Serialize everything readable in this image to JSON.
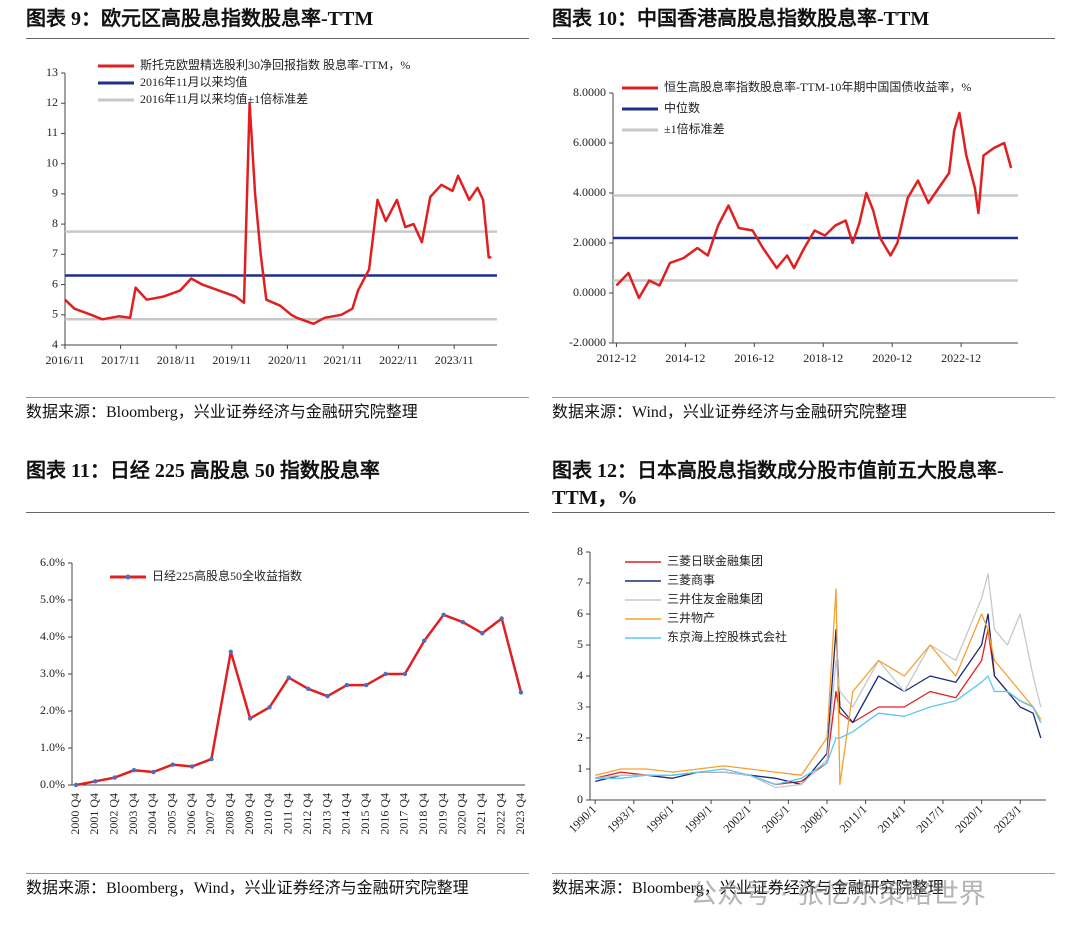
{
  "watermark": "公众号 · 张忆东策略世界",
  "chart_data": [
    {
      "type": "line",
      "title": "图表 9：欧元区高股息指数股息率-TTM",
      "source": "数据来源：Bloomberg，兴业证券经济与金融研究院整理",
      "x": [
        2016.83,
        2017.0,
        2017.3,
        2017.5,
        2017.8,
        2018.0,
        2018.1,
        2018.3,
        2018.6,
        2018.9,
        2019.1,
        2019.3,
        2019.6,
        2019.9,
        2020.05,
        2020.15,
        2020.25,
        2020.35,
        2020.45,
        2020.7,
        2020.9,
        2021.0,
        2021.3,
        2021.5,
        2021.8,
        2022.0,
        2022.1,
        2022.3,
        2022.45,
        2022.6,
        2022.8,
        2022.95,
        2023.1,
        2023.25,
        2023.4,
        2023.6,
        2023.8,
        2023.9,
        2024.1,
        2024.25,
        2024.35,
        2024.45,
        2024.5
      ],
      "series": [
        {
          "name": "斯托克欧盟精选股利30净回报指数 股息率-TTM，%",
          "color": "#e02020",
          "values": [
            5.5,
            5.2,
            5.0,
            4.85,
            4.95,
            4.9,
            5.9,
            5.5,
            5.6,
            5.8,
            6.2,
            6.0,
            5.8,
            5.6,
            5.4,
            12.0,
            9.0,
            7.0,
            5.5,
            5.3,
            5.0,
            4.9,
            4.7,
            4.9,
            5.0,
            5.2,
            5.8,
            6.5,
            8.8,
            8.1,
            8.8,
            7.9,
            8.0,
            7.4,
            8.9,
            9.3,
            9.1,
            9.6,
            8.8,
            9.2,
            8.8,
            6.9,
            6.9
          ]
        }
      ],
      "hlines": [
        {
          "name": "2016年11月以来均值",
          "color": "#1f2f8a",
          "values": [
            6.3
          ]
        },
        {
          "name": "2016年11月以来均值±1倍标准差",
          "color": "#c8c8c8",
          "values": [
            7.75,
            4.85
          ]
        }
      ],
      "xlim": [
        2016.83,
        2024.6
      ],
      "xticks": [
        {
          "value": 2016.83,
          "label": "2016/11"
        },
        {
          "value": 2017.83,
          "label": "2017/11"
        },
        {
          "value": 2018.83,
          "label": "2018/11"
        },
        {
          "value": 2019.83,
          "label": "2019/11"
        },
        {
          "value": 2020.83,
          "label": "2020/11"
        },
        {
          "value": 2021.83,
          "label": "2021/11"
        },
        {
          "value": 2022.83,
          "label": "2022/11"
        },
        {
          "value": 2023.83,
          "label": "2023/11"
        }
      ],
      "ylim": [
        4,
        13
      ],
      "yticks": [
        4,
        5,
        6,
        7,
        8,
        9,
        10,
        11,
        12,
        13
      ]
    },
    {
      "type": "line",
      "title": "图表 10：中国香港高股息指数股息率-TTM",
      "source": "数据来源：Wind，兴业证券经济与金融研究院整理",
      "x": [
        2012.95,
        2013.3,
        2013.6,
        2013.9,
        2014.2,
        2014.5,
        2014.9,
        2015.3,
        2015.6,
        2015.9,
        2016.2,
        2016.5,
        2016.9,
        2017.2,
        2017.6,
        2017.9,
        2018.1,
        2018.4,
        2018.7,
        2019.0,
        2019.3,
        2019.6,
        2019.8,
        2020.0,
        2020.2,
        2020.4,
        2020.6,
        2020.9,
        2021.1,
        2021.4,
        2021.7,
        2022.0,
        2022.3,
        2022.6,
        2022.75,
        2022.9,
        2023.1,
        2023.35,
        2023.45,
        2023.6,
        2023.9,
        2024.2,
        2024.4
      ],
      "series": [
        {
          "name": "恒生高股息率指数股息率-TTM-10年期中国国债收益率，%",
          "color": "#e02020",
          "values": [
            0.3,
            0.8,
            -0.2,
            0.5,
            0.3,
            1.2,
            1.4,
            1.8,
            1.5,
            2.7,
            3.5,
            2.6,
            2.5,
            1.8,
            1.0,
            1.5,
            1.0,
            1.8,
            2.5,
            2.3,
            2.7,
            2.9,
            2.0,
            2.8,
            4.0,
            3.3,
            2.2,
            1.5,
            2.0,
            3.8,
            4.5,
            3.6,
            4.2,
            4.8,
            6.5,
            7.2,
            5.5,
            4.2,
            3.2,
            5.5,
            5.8,
            6.0,
            5.0
          ]
        }
      ],
      "hlines": [
        {
          "name": "中位数",
          "color": "#1f2f8a",
          "values": [
            2.2
          ]
        },
        {
          "name": "±1倍标准差",
          "color": "#c8c8c8",
          "values": [
            3.9,
            0.5
          ]
        }
      ],
      "xlim": [
        2012.85,
        2024.6
      ],
      "xticks": [
        {
          "value": 2012.95,
          "label": "2012-12"
        },
        {
          "value": 2014.95,
          "label": "2014-12"
        },
        {
          "value": 2016.95,
          "label": "2016-12"
        },
        {
          "value": 2018.95,
          "label": "2018-12"
        },
        {
          "value": 2020.95,
          "label": "2020-12"
        },
        {
          "value": 2022.95,
          "label": "2022-12"
        }
      ],
      "ylim": [
        -2,
        8
      ],
      "yticks": [
        {
          "value": -2,
          "label": "-2.0000"
        },
        {
          "value": 0,
          "label": "0.0000"
        },
        {
          "value": 2,
          "label": "2.0000"
        },
        {
          "value": 4,
          "label": "4.0000"
        },
        {
          "value": 6,
          "label": "6.0000"
        },
        {
          "value": 8,
          "label": "8.0000"
        }
      ]
    },
    {
      "type": "line",
      "title": "图表 11：日经 225 高股息 50 指数股息率",
      "source": "数据来源：Bloomberg，Wind，兴业证券经济与金融研究院整理",
      "markers": true,
      "categories": [
        "2000 Q4",
        "2001 Q4",
        "2002 Q4",
        "2003 Q4",
        "2004 Q4",
        "2005 Q4",
        "2006 Q4",
        "2007 Q4",
        "2008 Q4",
        "2009 Q4",
        "2010 Q4",
        "2011 Q4",
        "2012 Q4",
        "2013 Q4",
        "2014 Q4",
        "2015 Q4",
        "2016 Q4",
        "2017 Q4",
        "2018 Q4",
        "2019 Q4",
        "2020 Q4",
        "2021 Q4",
        "2022 Q4",
        "2023 Q4"
      ],
      "series": [
        {
          "name": "日经225高股息50全收益指数",
          "color": "#e02020",
          "marker_color": "#4a6fc0",
          "values": [
            0.0,
            0.1,
            0.2,
            0.4,
            0.35,
            0.55,
            0.5,
            0.7,
            3.6,
            1.8,
            2.1,
            2.9,
            2.6,
            2.4,
            2.7,
            2.7,
            3.0,
            3.0,
            3.9,
            4.6,
            4.4,
            4.1,
            4.5,
            2.5
          ]
        }
      ],
      "ylim": [
        0,
        6
      ],
      "yticks": [
        {
          "value": 0,
          "label": "0.0%"
        },
        {
          "value": 1,
          "label": "1.0%"
        },
        {
          "value": 2,
          "label": "2.0%"
        },
        {
          "value": 3,
          "label": "3.0%"
        },
        {
          "value": 4,
          "label": "4.0%"
        },
        {
          "value": 5,
          "label": "5.0%"
        },
        {
          "value": 6,
          "label": "6.0%"
        }
      ]
    },
    {
      "type": "line",
      "title": "图表 12：日本高股息指数成分股市值前五大股息率-TTM，%",
      "source": "数据来源：Bloomberg，兴业证券经济与金融研究院整理",
      "x": [
        1990,
        1992,
        1994,
        1996,
        1998,
        2000,
        2002,
        2004,
        2006,
        2008,
        2008.7,
        2009,
        2010,
        2012,
        2014,
        2016,
        2018,
        2020,
        2020.5,
        2021,
        2022,
        2023,
        2024,
        2024.6
      ],
      "series": [
        {
          "name": "三菱日联金融集团",
          "color": "#e02020",
          "values": [
            0.7,
            0.9,
            0.8,
            0.8,
            0.9,
            0.9,
            0.8,
            0.5,
            0.6,
            1.2,
            3.5,
            2.8,
            2.5,
            3.0,
            3.0,
            3.5,
            3.3,
            4.5,
            5.5,
            4.0,
            3.5,
            3.2,
            3.0,
            2.5
          ]
        },
        {
          "name": "三菱商事",
          "color": "#1a2a7a",
          "values": [
            0.6,
            0.8,
            0.8,
            0.7,
            0.9,
            0.9,
            0.8,
            0.7,
            0.5,
            1.5,
            5.5,
            3.0,
            2.5,
            4.0,
            3.5,
            4.0,
            3.8,
            5.0,
            6.0,
            4.0,
            3.5,
            3.0,
            2.8,
            2.0
          ]
        },
        {
          "name": "三井住友金融集团",
          "color": "#c8c8c8",
          "values": [
            0.7,
            0.8,
            0.8,
            0.8,
            0.9,
            0.9,
            0.8,
            0.4,
            0.5,
            1.3,
            4.5,
            3.5,
            3.0,
            4.5,
            3.5,
            5.0,
            4.5,
            6.5,
            7.3,
            5.5,
            5.0,
            6.0,
            4.0,
            3.0
          ]
        },
        {
          "name": "三井物产",
          "color": "#f5a030",
          "values": [
            0.8,
            1.0,
            1.0,
            0.9,
            1.0,
            1.1,
            1.0,
            0.9,
            0.8,
            2.0,
            6.8,
            0.5,
            3.5,
            4.5,
            4.0,
            5.0,
            4.0,
            6.0,
            5.5,
            4.5,
            4.0,
            3.5,
            3.0,
            2.6
          ]
        },
        {
          "name": "东京海上控股株式会社",
          "color": "#5bc8f0",
          "values": [
            0.7,
            0.7,
            0.8,
            0.8,
            0.9,
            1.0,
            0.8,
            0.5,
            0.7,
            1.2,
            2.0,
            2.0,
            2.2,
            2.8,
            2.7,
            3.0,
            3.2,
            3.8,
            4.0,
            3.5,
            3.5,
            3.2,
            3.0,
            2.5
          ]
        }
      ],
      "xlim": [
        1989.6,
        2025.0
      ],
      "xticks": [
        {
          "value": 1990,
          "label": "1990/1"
        },
        {
          "value": 1993,
          "label": "1993/1"
        },
        {
          "value": 1996,
          "label": "1996/1"
        },
        {
          "value": 1999,
          "label": "1999/1"
        },
        {
          "value": 2002,
          "label": "2002/1"
        },
        {
          "value": 2005,
          "label": "2005/1"
        },
        {
          "value": 2008,
          "label": "2008/1"
        },
        {
          "value": 2011,
          "label": "2011/1"
        },
        {
          "value": 2014,
          "label": "2014/1"
        },
        {
          "value": 2017,
          "label": "2017/1"
        },
        {
          "value": 2020,
          "label": "2020/1"
        },
        {
          "value": 2023,
          "label": "2023/1"
        }
      ],
      "ylim": [
        0,
        8
      ],
      "yticks": [
        0,
        1,
        2,
        3,
        4,
        5,
        6,
        7,
        8
      ]
    }
  ]
}
